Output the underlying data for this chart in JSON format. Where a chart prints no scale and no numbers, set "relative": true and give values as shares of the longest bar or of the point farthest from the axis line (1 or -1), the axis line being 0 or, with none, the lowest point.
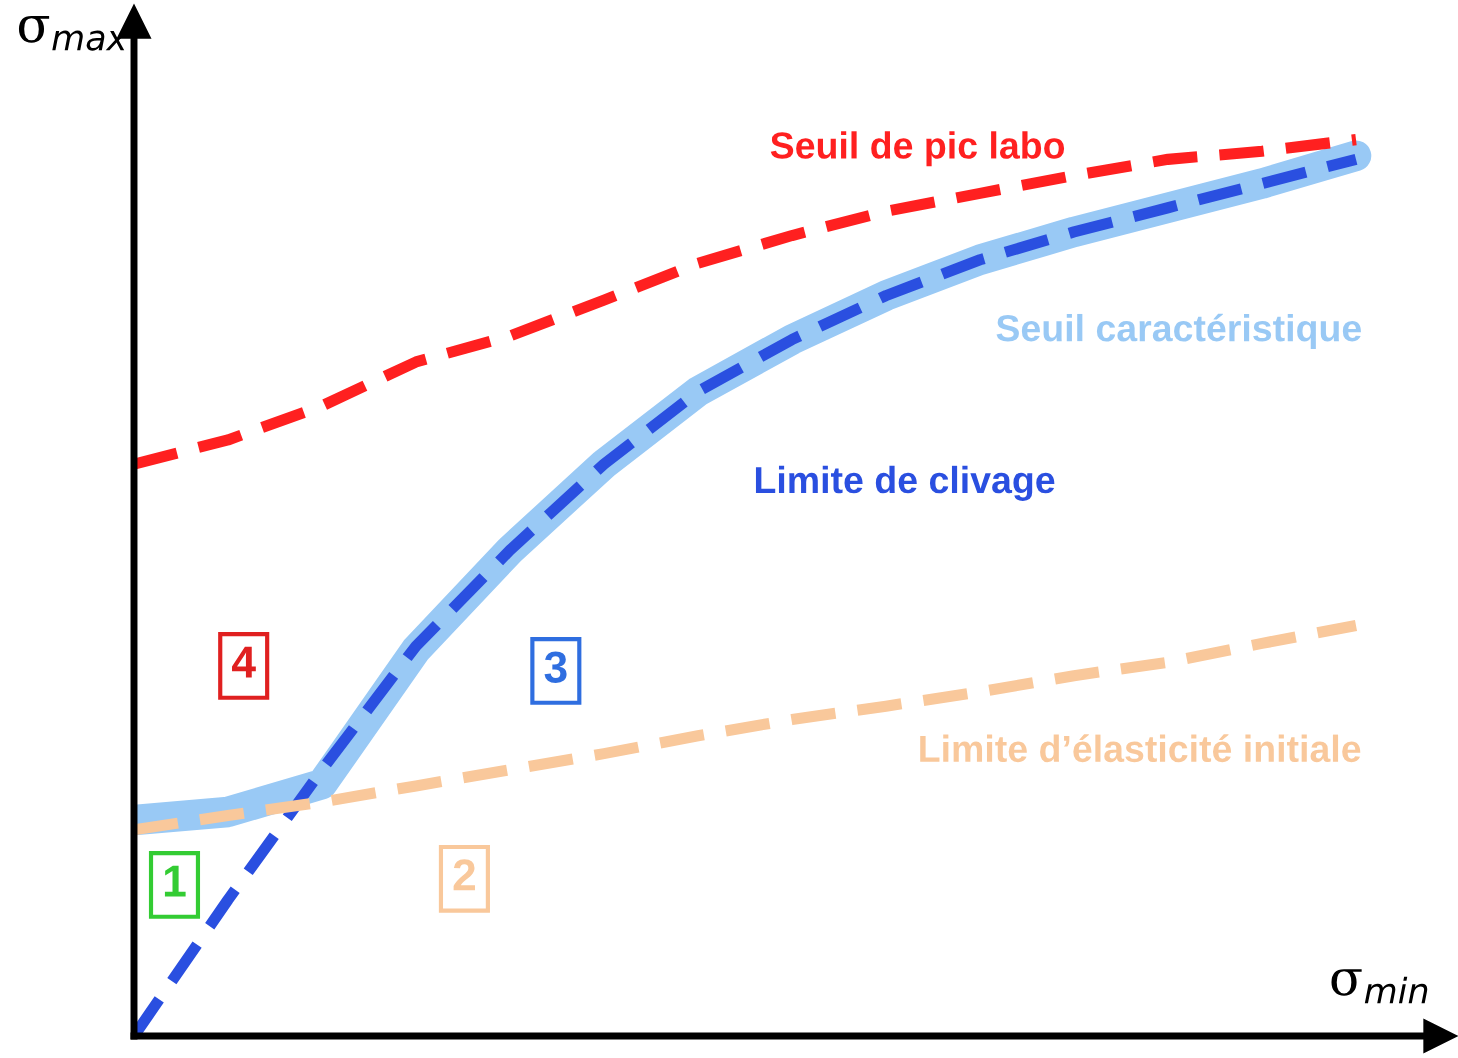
{
  "chart_data": {
    "type": "line",
    "relative": true,
    "xlabel": "σ$_{min}$",
    "ylabel": "σ$_{max}$",
    "legend": false,
    "marker": "none",
    "categories": [
      null,
      null,
      null,
      null,
      null,
      null,
      null,
      null,
      null,
      null,
      null,
      null,
      null,
      null
    ],
    "series": [
      {
        "name": "Seuil de pic labo",
        "color": "#ff2020",
        "line_style": "dashed",
        "values": [
          0.638,
          0.665,
          0.703,
          0.752,
          0.781,
          0.821,
          0.862,
          0.893,
          0.92,
          0.94,
          0.96,
          0.978,
          0.987,
          1.0
        ]
      },
      {
        "name": "Seuil caractéristique",
        "color": "#99c9f5",
        "line_style": "solid",
        "values": [
          0.241,
          0.25,
          0.281,
          0.431,
          0.542,
          0.638,
          0.719,
          0.777,
          0.826,
          0.866,
          0.897,
          0.924,
          0.951,
          0.982
        ]
      },
      {
        "name": "Limite de clivage",
        "color": "#2a4fe0",
        "line_style": "dashed",
        "values": [
          0,
          0.152,
          0.297,
          0.435,
          0.542,
          0.638,
          0.719,
          0.777,
          0.826,
          0.866,
          0.897,
          0.924,
          0.951,
          0.978
        ]
      },
      {
        "name": "Limite d’élasticité initiale",
        "color": "#f9c89b",
        "line_style": "dashed",
        "values": [
          0.23,
          0.246,
          0.261,
          0.279,
          0.297,
          0.315,
          0.335,
          0.353,
          0.368,
          0.384,
          0.402,
          0.417,
          0.438,
          0.458
        ]
      }
    ],
    "annotations": [
      "4",
      "3",
      "1",
      "2"
    ]
  }
}
